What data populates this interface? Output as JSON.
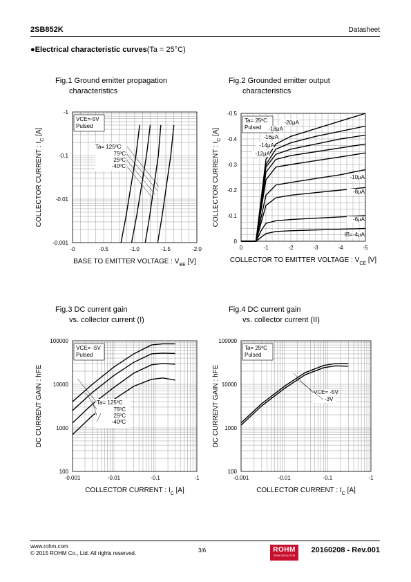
{
  "header": {
    "part": "2SB852K",
    "doc_type": "Datasheet"
  },
  "section": {
    "title": "Electrical characteristic curves",
    "condition": "(Ta = 25°C)"
  },
  "footer": {
    "url": "www.rohm.com",
    "copyright": "© 2015 ROHM Co., Ltd. All rights reserved.",
    "page": "3/6",
    "revision": "20160208 - Rev.001",
    "logo_text": "ROHM",
    "logo_sub": "SEMICONDUCTOR"
  },
  "figures": [
    {
      "title_l1": "Fig.1 Ground emitter propagation",
      "title_l2": "characteristics"
    },
    {
      "title_l1": "Fig.2 Grounded emitter output",
      "title_l2": "characteristics"
    },
    {
      "title_l1": "Fig.3 DC current gain",
      "title_l2": "vs. collector current (I)"
    },
    {
      "title_l1": "Fig.4 DC current gain",
      "title_l2": "vs. collector current (II)"
    }
  ],
  "chart_data": [
    {
      "type": "line",
      "xlabel": "BASE TO EMITTER VOLTAGE : VBE [V]",
      "ylabel": "COLLECTOR CURRENT : IC [A]",
      "x_scale": "linear",
      "y_scale": "log",
      "xlim": [
        0,
        -2.0
      ],
      "ylim": [
        -0.001,
        -1
      ],
      "x_ticks": [
        "-0",
        "-0.5",
        "-1.0",
        "-1.5",
        "-2.0"
      ],
      "y_ticks": [
        "-1",
        "-0.1",
        "-0.01",
        "-0.001"
      ],
      "conditions": [
        "VCE=-5V",
        "Pulsed"
      ],
      "series_label_title": "Ta= 125ºC",
      "series": [
        {
          "name": "125ºC",
          "x": [
            -0.78,
            -0.86,
            -0.94,
            -1.02,
            -1.08
          ],
          "y": [
            -0.001,
            -0.004,
            -0.02,
            -0.1,
            -0.5
          ]
        },
        {
          "name": "75ºC",
          "x": [
            -0.95,
            -1.03,
            -1.11,
            -1.19,
            -1.25
          ],
          "y": [
            -0.001,
            -0.004,
            -0.02,
            -0.1,
            -0.5
          ]
        },
        {
          "name": "25ºC",
          "x": [
            -1.17,
            -1.24,
            -1.31,
            -1.38,
            -1.42
          ],
          "y": [
            -0.001,
            -0.004,
            -0.02,
            -0.1,
            -0.5
          ]
        },
        {
          "name": "-40ºC",
          "x": [
            -1.37,
            -1.44,
            -1.51,
            -1.58,
            -1.63
          ],
          "y": [
            -0.001,
            -0.004,
            -0.02,
            -0.1,
            -0.5
          ]
        }
      ]
    },
    {
      "type": "line",
      "xlabel": "COLLECTOR TO EMITTER VOLTAGE : VCE [V]",
      "ylabel": "COLLECTOR CURRENT : IC [A]",
      "x_scale": "linear",
      "y_scale": "linear",
      "xlim": [
        0,
        -5
      ],
      "ylim": [
        0,
        -0.5
      ],
      "x_ticks": [
        "0",
        "-1",
        "-2",
        "-3",
        "-4",
        "-5"
      ],
      "y_ticks": [
        "-0.5",
        "-0.4",
        "-0.3",
        "-0.2",
        "-0.1",
        "0"
      ],
      "conditions": [
        "Ta= 25ºC",
        "Pulsed"
      ],
      "series": [
        {
          "name": "IB=-4μA",
          "x": [
            0,
            -0.6,
            -0.8,
            -1.0,
            -1.4,
            -2,
            -3,
            -4,
            -5
          ],
          "y": [
            0,
            0,
            -0.015,
            -0.03,
            -0.038,
            -0.041,
            -0.044,
            -0.047,
            -0.05
          ]
        },
        {
          "name": "-6μA",
          "x": [
            0,
            -0.6,
            -0.8,
            -1.0,
            -1.4,
            -2,
            -3,
            -4,
            -5
          ],
          "y": [
            0,
            0,
            -0.04,
            -0.07,
            -0.08,
            -0.085,
            -0.09,
            -0.095,
            -0.1
          ]
        },
        {
          "name": "-8μA",
          "x": [
            0,
            -0.6,
            -0.8,
            -1.0,
            -1.4,
            -2,
            -3,
            -4,
            -5
          ],
          "y": [
            0,
            0,
            -0.07,
            -0.14,
            -0.17,
            -0.18,
            -0.19,
            -0.2,
            -0.21
          ]
        },
        {
          "name": "-10μA",
          "x": [
            0,
            -0.6,
            -0.8,
            -1.0,
            -1.4,
            -2,
            -3,
            -4,
            -5
          ],
          "y": [
            0,
            0,
            -0.09,
            -0.18,
            -0.22,
            -0.23,
            -0.245,
            -0.26,
            -0.28
          ]
        },
        {
          "name": "-12μA",
          "x": [
            0,
            -0.6,
            -0.8,
            -1.0,
            -1.4,
            -2,
            -3,
            -4,
            -5
          ],
          "y": [
            0,
            0,
            -0.12,
            -0.24,
            -0.29,
            -0.3,
            -0.315,
            -0.33,
            -0.345
          ]
        },
        {
          "name": "-14μA",
          "x": [
            0,
            -0.6,
            -0.8,
            -1.0,
            -1.4,
            -2,
            -3,
            -4,
            -5
          ],
          "y": [
            0,
            0,
            -0.13,
            -0.27,
            -0.32,
            -0.335,
            -0.35,
            -0.365,
            -0.38
          ]
        },
        {
          "name": "-16μA",
          "x": [
            0,
            -0.6,
            -0.8,
            -1.0,
            -1.4,
            -2,
            -3,
            -4,
            -5
          ],
          "y": [
            0,
            0,
            -0.14,
            -0.29,
            -0.34,
            -0.36,
            -0.38,
            -0.4,
            -0.415
          ]
        },
        {
          "name": "-18μA",
          "x": [
            0,
            -0.6,
            -0.8,
            -1.0,
            -1.4,
            -2,
            -3,
            -4,
            -5
          ],
          "y": [
            0,
            0,
            -0.15,
            -0.3,
            -0.36,
            -0.385,
            -0.41,
            -0.43,
            -0.45
          ]
        },
        {
          "name": "-20μA",
          "x": [
            0,
            -0.6,
            -0.8,
            -1.0,
            -1.4,
            -2,
            -3,
            -4,
            -5
          ],
          "y": [
            0,
            0,
            -0.16,
            -0.32,
            -0.38,
            -0.41,
            -0.44,
            -0.47,
            -0.5
          ]
        }
      ]
    },
    {
      "type": "line",
      "xlabel": "COLLECTOR CURRENT : IC [A]",
      "ylabel": "DC CURRENT GAIN : hFE",
      "x_scale": "log",
      "y_scale": "log",
      "xlim": [
        -0.001,
        -1
      ],
      "ylim": [
        100,
        100000
      ],
      "x_ticks": [
        "-0.001",
        "-0.01",
        "-0.1",
        "-1"
      ],
      "y_ticks": [
        "100000",
        "10000",
        "1000",
        "100"
      ],
      "conditions": [
        "VCE= -5V",
        "Pulsed"
      ],
      "series_label_title": "Ta= 125ºC",
      "series": [
        {
          "name": "125ºC",
          "x": [
            -0.001,
            -0.003,
            -0.01,
            -0.03,
            -0.08,
            -0.15,
            -0.3
          ],
          "y": [
            4000,
            10000,
            25000,
            50000,
            80000,
            85000,
            85000
          ]
        },
        {
          "name": "75ºC",
          "x": [
            -0.001,
            -0.003,
            -0.01,
            -0.03,
            -0.08,
            -0.15,
            -0.3
          ],
          "y": [
            2500,
            6500,
            16000,
            32000,
            50000,
            52000,
            51000
          ]
        },
        {
          "name": "25ºC",
          "x": [
            -0.001,
            -0.003,
            -0.01,
            -0.03,
            -0.08,
            -0.15,
            -0.3
          ],
          "y": [
            1300,
            3500,
            8500,
            18000,
            28000,
            30000,
            29000
          ]
        },
        {
          "name": "-40ºC",
          "x": [
            -0.001,
            -0.003,
            -0.01,
            -0.03,
            -0.08,
            -0.15,
            -0.3
          ],
          "y": [
            700,
            1900,
            4500,
            9000,
            13000,
            14000,
            12500
          ]
        }
      ]
    },
    {
      "type": "line",
      "xlabel": "COLLECTOR CURRENT : IC [A]",
      "ylabel": "DC CURRENT GAIN : hFE",
      "x_scale": "log",
      "y_scale": "log",
      "xlim": [
        -0.001,
        -1
      ],
      "ylim": [
        100,
        100000
      ],
      "x_ticks": [
        "-0.001",
        "-0.01",
        "-0.1",
        "-1"
      ],
      "y_ticks": [
        "100000",
        "10000",
        "1000",
        "100"
      ],
      "conditions": [
        "Ta= 25ºC",
        "Pulsed"
      ],
      "series": [
        {
          "name": "VCE= -5V",
          "x": [
            -0.001,
            -0.003,
            -0.01,
            -0.03,
            -0.08,
            -0.15,
            -0.3
          ],
          "y": [
            1300,
            3600,
            9000,
            18500,
            27000,
            30000,
            30000
          ]
        },
        {
          "name": "-3V",
          "x": [
            -0.001,
            -0.003,
            -0.01,
            -0.03,
            -0.08,
            -0.15,
            -0.3
          ],
          "y": [
            1150,
            3200,
            8000,
            16500,
            24000,
            26500,
            26000
          ]
        }
      ]
    }
  ]
}
